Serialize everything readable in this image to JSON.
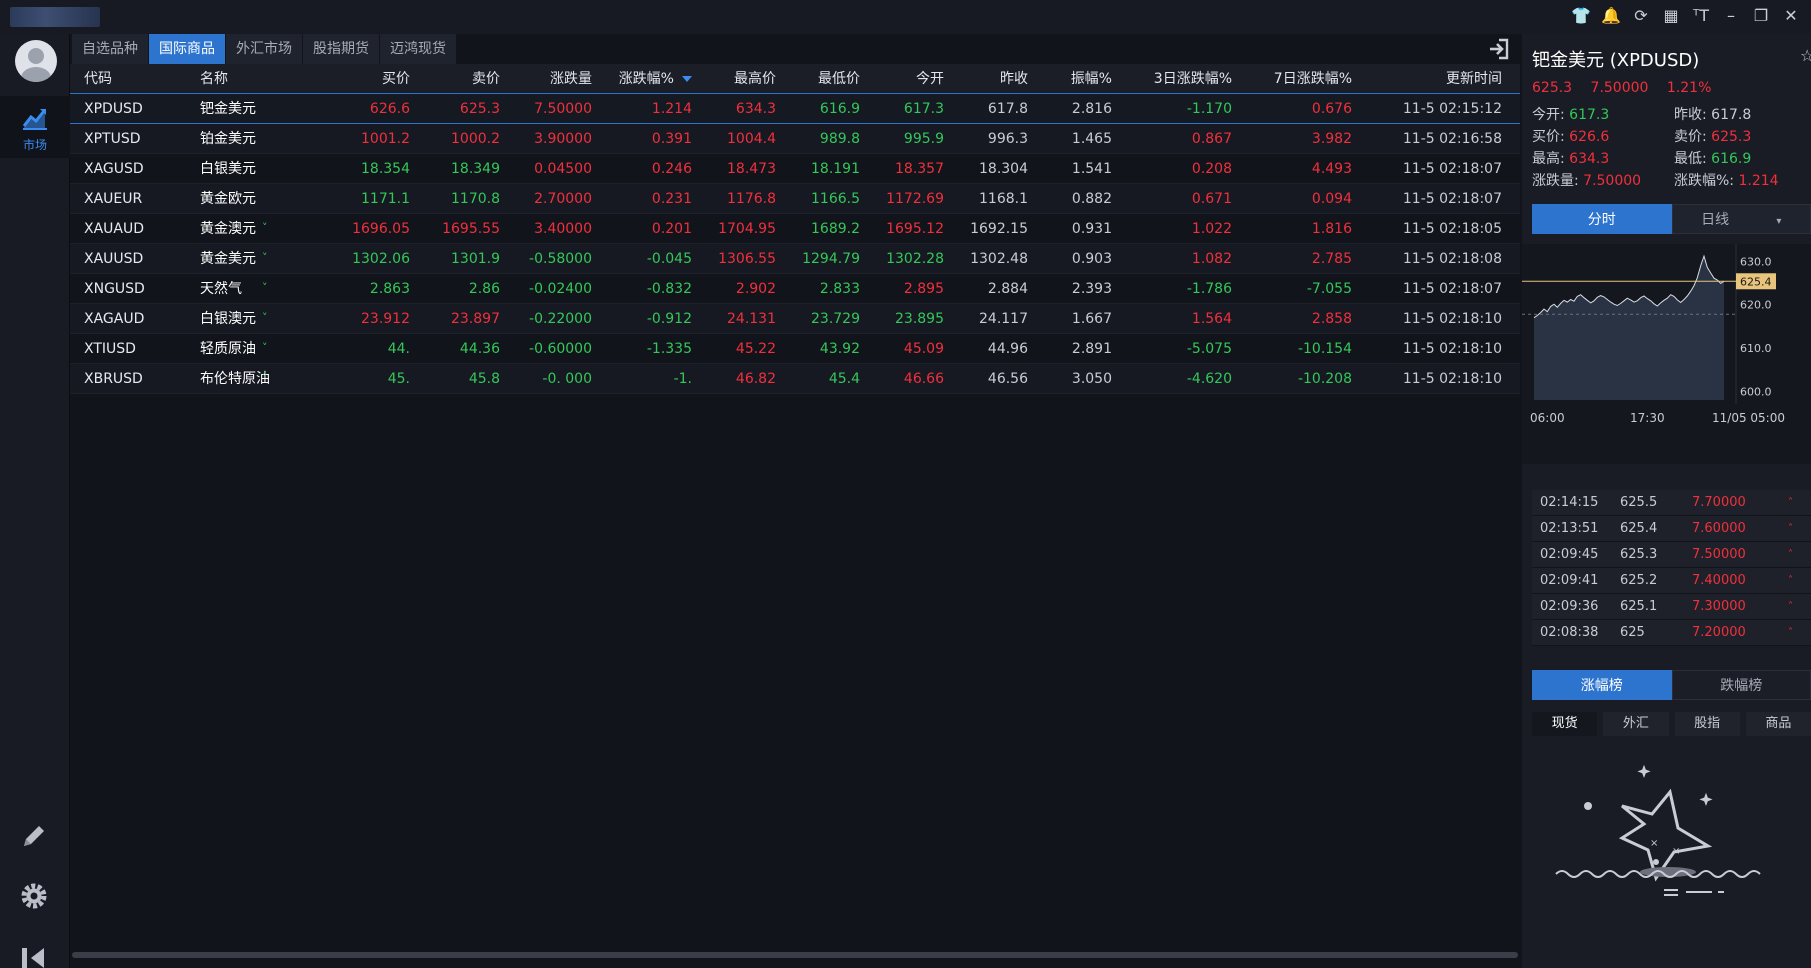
{
  "window": {
    "tools": [
      "shirt-icon",
      "bell-icon",
      "refresh-icon",
      "grid-icon",
      "font-size-icon",
      "minimize-icon",
      "restore-icon",
      "close-icon"
    ],
    "glyphs": [
      "👕",
      "🔔",
      "⟳",
      "▦",
      "ᵀT",
      "–",
      "❐",
      "✕"
    ]
  },
  "leftnav": {
    "market_label": "市场"
  },
  "tabs": [
    {
      "label": "自选品种",
      "active": false
    },
    {
      "label": "国际商品",
      "active": true
    },
    {
      "label": "外汇市场",
      "active": false
    },
    {
      "label": "股指期货",
      "active": false
    },
    {
      "label": "迈鸿现货",
      "active": false
    }
  ],
  "table": {
    "headers": {
      "code": "代码",
      "name": "名称",
      "bid": "买价",
      "ask": "卖价",
      "change": "涨跌量",
      "change_pct": "涨跌幅%",
      "high": "最高价",
      "low": "最低价",
      "open": "今开",
      "prev_close": "昨收",
      "amplitude": "振幅%",
      "chg3d": "3日涨跌幅%",
      "chg7d": "7日涨跌幅%",
      "time": "更新时间"
    },
    "rows": [
      {
        "code": "XPDUSD",
        "name": "钯金美元",
        "chev": "",
        "bid": "626.6",
        "ask": "625.3",
        "change": "7.50000",
        "change_pct": "1.214",
        "high": "634.3",
        "low": "616.9",
        "open": "617.3",
        "prev_close": "617.8",
        "amplitude": "2.816",
        "chg3d": "-1.170",
        "chg7d": "0.676",
        "time": "11-5 02:15:12",
        "c": {
          "bid": "up",
          "ask": "up",
          "change": "up",
          "change_pct": "up",
          "high": "up",
          "low": "dn",
          "open": "dn",
          "chg3d": "dn",
          "chg7d": "up"
        }
      },
      {
        "code": "XPTUSD",
        "name": "铂金美元",
        "chev": "",
        "bid": "1001.2",
        "ask": "1000.2",
        "change": "3.90000",
        "change_pct": "0.391",
        "high": "1004.4",
        "low": "989.8",
        "open": "995.9",
        "prev_close": "996.3",
        "amplitude": "1.465",
        "chg3d": "0.867",
        "chg7d": "3.982",
        "time": "11-5 02:16:58",
        "c": {
          "bid": "up",
          "ask": "up",
          "change": "up",
          "change_pct": "up",
          "high": "up",
          "low": "dn",
          "open": "dn",
          "chg3d": "up",
          "chg7d": "up"
        }
      },
      {
        "code": "XAGUSD",
        "name": "白银美元",
        "chev": "",
        "bid": "18.354",
        "ask": "18.349",
        "change": "0.04500",
        "change_pct": "0.246",
        "high": "18.473",
        "low": "18.191",
        "open": "18.357",
        "prev_close": "18.304",
        "amplitude": "1.541",
        "chg3d": "0.208",
        "chg7d": "4.493",
        "time": "11-5 02:18:07",
        "c": {
          "bid": "dn",
          "ask": "dn",
          "change": "up",
          "change_pct": "up",
          "high": "up",
          "low": "dn",
          "open": "up",
          "chg3d": "up",
          "chg7d": "up"
        }
      },
      {
        "code": "XAUEUR",
        "name": "黄金欧元",
        "chev": "",
        "bid": "1171.1",
        "ask": "1170.8",
        "change": "2.70000",
        "change_pct": "0.231",
        "high": "1176.8",
        "low": "1166.5",
        "open": "1172.69",
        "prev_close": "1168.1",
        "amplitude": "0.882",
        "chg3d": "0.671",
        "chg7d": "0.094",
        "time": "11-5 02:18:07",
        "c": {
          "bid": "dn",
          "ask": "dn",
          "change": "up",
          "change_pct": "up",
          "high": "up",
          "low": "dn",
          "open": "up",
          "chg3d": "up",
          "chg7d": "up"
        }
      },
      {
        "code": "XAUAUD",
        "name": "黄金澳元",
        "chev": "˅",
        "bid": "1696.05",
        "ask": "1695.55",
        "change": "3.40000",
        "change_pct": "0.201",
        "high": "1704.95",
        "low": "1689.2",
        "open": "1695.12",
        "prev_close": "1692.15",
        "amplitude": "0.931",
        "chg3d": "1.022",
        "chg7d": "1.816",
        "time": "11-5 02:18:05",
        "c": {
          "bid": "up",
          "ask": "up",
          "change": "up",
          "change_pct": "up",
          "high": "up",
          "low": "dn",
          "open": "up",
          "chg3d": "up",
          "chg7d": "up"
        }
      },
      {
        "code": "XAUUSD",
        "name": "黄金美元",
        "chev": "˅",
        "bid": "1302.06",
        "ask": "1301.9",
        "change": "-0.58000",
        "change_pct": "-0.045",
        "high": "1306.55",
        "low": "1294.79",
        "open": "1302.28",
        "prev_close": "1302.48",
        "amplitude": "0.903",
        "chg3d": "1.082",
        "chg7d": "2.785",
        "time": "11-5 02:18:08",
        "c": {
          "bid": "dn",
          "ask": "dn",
          "change": "dn",
          "change_pct": "dn",
          "high": "up",
          "low": "dn",
          "open": "dn",
          "chg3d": "up",
          "chg7d": "up"
        }
      },
      {
        "code": "XNGUSD",
        "name": "天然气",
        "chev": "˅",
        "bid": "2.863",
        "ask": "2.86",
        "change": "-0.02400",
        "change_pct": "-0.832",
        "high": "2.902",
        "low": "2.833",
        "open": "2.895",
        "prev_close": "2.884",
        "amplitude": "2.393",
        "chg3d": "-1.786",
        "chg7d": "-7.055",
        "time": "11-5 02:18:07",
        "c": {
          "bid": "dn",
          "ask": "dn",
          "change": "dn",
          "change_pct": "dn",
          "high": "up",
          "low": "dn",
          "open": "up",
          "chg3d": "dn",
          "chg7d": "dn"
        }
      },
      {
        "code": "XAGAUD",
        "name": "白银澳元",
        "chev": "˅",
        "bid": "23.912",
        "ask": "23.897",
        "change": "-0.22000",
        "change_pct": "-0.912",
        "high": "24.131",
        "low": "23.729",
        "open": "23.895",
        "prev_close": "24.117",
        "amplitude": "1.667",
        "chg3d": "1.564",
        "chg7d": "2.858",
        "time": "11-5 02:18:10",
        "c": {
          "bid": "up",
          "ask": "up",
          "change": "dn",
          "change_pct": "dn",
          "high": "up",
          "low": "dn",
          "open": "dn",
          "chg3d": "up",
          "chg7d": "up"
        }
      },
      {
        "code": "XTIUSD",
        "name": "轻质原油",
        "chev": "˅",
        "bid": "44.",
        "ask": "44.36",
        "change": "-0.60000",
        "change_pct": "-1.335",
        "high": "45.22",
        "low": "43.92",
        "open": "45.09",
        "prev_close": "44.96",
        "amplitude": "2.891",
        "chg3d": "-5.075",
        "chg7d": "-10.154",
        "time": "11-5 02:18:10",
        "c": {
          "bid": "dn",
          "ask": "dn",
          "change": "dn",
          "change_pct": "dn",
          "high": "up",
          "low": "dn",
          "open": "up",
          "chg3d": "dn",
          "chg7d": "dn"
        }
      },
      {
        "code": "XBRUSD",
        "name": "布伦特原油",
        "chev": "˄",
        "bid": "45.",
        "ask": "45.8",
        "change": "-0.   000",
        "change_pct": "-1.",
        "high": "46.82",
        "low": "45.4",
        "open": "46.66",
        "prev_close": "46.56",
        "amplitude": "3.050",
        "chg3d": "-4.620",
        "chg7d": "-10.208",
        "time": "11-5 02:18:10",
        "c": {
          "bid": "dn",
          "ask": "dn",
          "change": "dn",
          "change_pct": "dn",
          "high": "up",
          "low": "dn",
          "open": "up",
          "chg3d": "dn",
          "chg7d": "dn"
        }
      }
    ]
  },
  "detail": {
    "title": "钯金美元 (XPDUSD)",
    "price": "625.3",
    "change": "7.50000",
    "change_pct": "1.21%",
    "stats": {
      "open_k": "今开:",
      "open_v": "617.3",
      "prev_k": "昨收:",
      "prev_v": "617.8",
      "bid_k": "买价:",
      "bid_v": "626.6",
      "ask_k": "卖价:",
      "ask_v": "625.3",
      "high_k": "最高:",
      "high_v": "634.3",
      "low_k": "最低:",
      "low_v": "616.9",
      "chg_k": "涨跌量:",
      "chg_v": "7.50000",
      "chgp_k": "涨跌幅%:",
      "chgp_v": "1.214"
    },
    "chart_tabs": [
      {
        "label": "分时",
        "active": true
      },
      {
        "label": "日线",
        "active": false
      }
    ],
    "ticks": [
      {
        "time": "02:14:15",
        "price": "625.5",
        "change": "7.70000"
      },
      {
        "time": "02:13:51",
        "price": "625.4",
        "change": "7.60000"
      },
      {
        "time": "02:09:45",
        "price": "625.3",
        "change": "7.50000"
      },
      {
        "time": "02:09:41",
        "price": "625.2",
        "change": "7.40000"
      },
      {
        "time": "02:09:36",
        "price": "625.1",
        "change": "7.30000"
      },
      {
        "time": "02:08:38",
        "price": "625",
        "change": "7.20000"
      }
    ],
    "rank_tabs": [
      {
        "label": "涨幅榜",
        "active": true
      },
      {
        "label": "跌幅榜",
        "active": false
      }
    ],
    "sub_tabs": [
      {
        "label": "现货",
        "active": true
      },
      {
        "label": "外汇",
        "active": false
      },
      {
        "label": "股指",
        "active": false
      },
      {
        "label": "商品",
        "active": false
      }
    ]
  },
  "chart_data": {
    "type": "line",
    "x_labels": [
      "06:00",
      "17:30",
      "11/05 05:00"
    ],
    "y_ticks": [
      600.0,
      610.0,
      620.0,
      630.0
    ],
    "y_tick_labels": [
      "600.0",
      "610.0",
      "620.0",
      "630.0"
    ],
    "ylim": [
      598,
      634
    ],
    "current_price": 625.4,
    "current_price_label": "625.4",
    "prev_close": 617.8,
    "values": [
      617.0,
      617.5,
      618.2,
      619.0,
      618.4,
      619.6,
      620.1,
      619.4,
      620.3,
      621.0,
      620.6,
      621.2,
      620.8,
      621.9,
      622.3,
      621.6,
      621.0,
      620.4,
      620.9,
      621.7,
      622.1,
      621.8,
      621.2,
      620.6,
      620.1,
      619.8,
      620.3,
      620.9,
      621.5,
      621.1,
      620.6,
      620.9,
      621.6,
      622.0,
      621.4,
      620.9,
      620.2,
      619.7,
      620.4,
      621.0,
      621.5,
      622.3,
      621.9,
      621.1,
      620.5,
      621.2,
      622.0,
      623.1,
      624.4,
      626.2,
      629.0,
      631.2,
      628.6,
      627.3,
      626.1,
      625.7,
      624.9,
      625.4
    ]
  }
}
